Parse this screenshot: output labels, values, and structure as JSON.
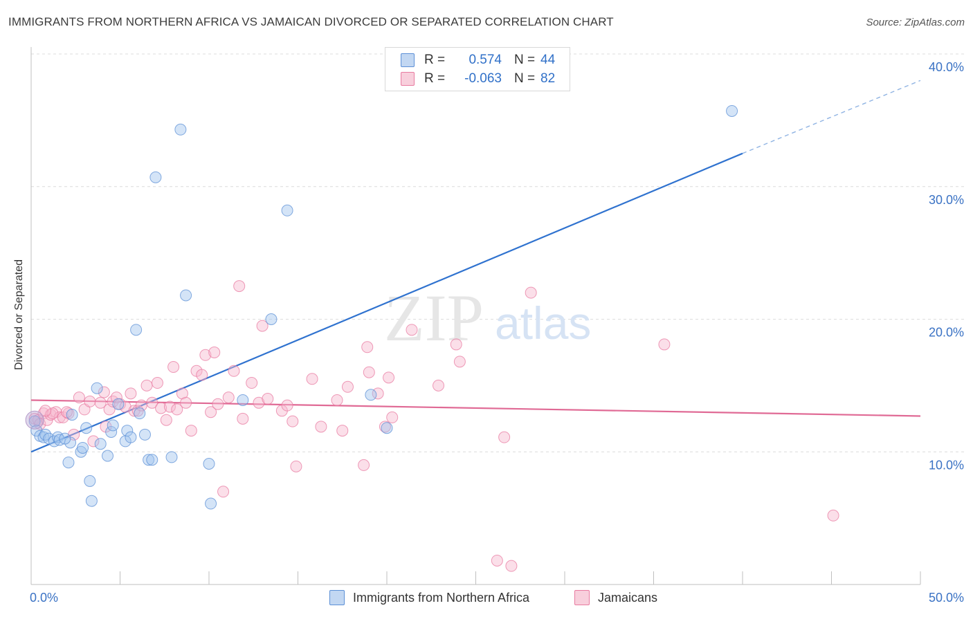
{
  "title": "IMMIGRANTS FROM NORTHERN AFRICA VS JAMAICAN DIVORCED OR SEPARATED CORRELATION CHART",
  "source": "Source: ZipAtlas.com",
  "watermark": {
    "zip": "ZIP",
    "atlas": "atlas"
  },
  "legend": {
    "rows": [
      {
        "r_label": "R =",
        "r_value": "0.574",
        "n_label": "N =",
        "n_value": "44",
        "color": "#5b8fd6"
      },
      {
        "r_label": "R =",
        "r_value": "-0.063",
        "n_label": "N =",
        "n_value": "82",
        "color": "#e87aa0"
      }
    ]
  },
  "bottom_legend": [
    {
      "label": "Immigrants from Northern Africa",
      "color": "#5b8fd6"
    },
    {
      "label": "Jamaicans",
      "color": "#e87aa0"
    }
  ],
  "chart_data": {
    "type": "scatter",
    "title": "IMMIGRANTS FROM NORTHERN AFRICA VS JAMAICAN DIVORCED OR SEPARATED CORRELATION CHART",
    "xlabel": "",
    "ylabel": "Divorced or Separated",
    "xlim": [
      0,
      50
    ],
    "ylim": [
      0,
      40
    ],
    "x_tick_labels": [
      "0.0%",
      "50.0%"
    ],
    "y_tick_labels": [
      "10.0%",
      "20.0%",
      "30.0%",
      "40.0%"
    ],
    "y_ticks": [
      10,
      20,
      30,
      40
    ],
    "grid": true,
    "legend_position": "top-center",
    "series": [
      {
        "name": "Immigrants from Northern Africa",
        "color": "#5b8fd6",
        "trend": {
          "x0": 0,
          "y0": 10.0,
          "x1": 40,
          "y1": 32.5,
          "dash_to_x": 50,
          "dash_to_y": 38.0
        },
        "points": [
          [
            0.2,
            12.3
          ],
          [
            0.3,
            11.6
          ],
          [
            0.5,
            11.2
          ],
          [
            0.7,
            11.1
          ],
          [
            0.8,
            11.3
          ],
          [
            1.0,
            11.0
          ],
          [
            1.3,
            10.8
          ],
          [
            1.5,
            11.1
          ],
          [
            1.6,
            10.9
          ],
          [
            2.2,
            10.7
          ],
          [
            2.1,
            9.2
          ],
          [
            2.8,
            10.0
          ],
          [
            2.9,
            10.3
          ],
          [
            3.1,
            11.8
          ],
          [
            3.3,
            7.8
          ],
          [
            3.4,
            6.3
          ],
          [
            3.7,
            14.8
          ],
          [
            3.9,
            10.6
          ],
          [
            4.3,
            9.7
          ],
          [
            4.5,
            11.5
          ],
          [
            4.6,
            12.0
          ],
          [
            4.9,
            13.6
          ],
          [
            5.3,
            10.8
          ],
          [
            5.4,
            11.6
          ],
          [
            5.6,
            11.1
          ],
          [
            5.9,
            19.2
          ],
          [
            6.1,
            12.9
          ],
          [
            6.4,
            11.3
          ],
          [
            6.6,
            9.4
          ],
          [
            6.8,
            9.4
          ],
          [
            7.0,
            30.7
          ],
          [
            7.9,
            9.6
          ],
          [
            8.4,
            34.3
          ],
          [
            8.7,
            21.8
          ],
          [
            10.0,
            9.1
          ],
          [
            10.1,
            6.1
          ],
          [
            11.9,
            13.9
          ],
          [
            13.5,
            20.0
          ],
          [
            14.4,
            28.2
          ],
          [
            19.1,
            14.3
          ],
          [
            20.0,
            11.8
          ],
          [
            39.4,
            35.7
          ],
          [
            2.3,
            12.8
          ],
          [
            1.9,
            11.0
          ]
        ]
      },
      {
        "name": "Jamaicans",
        "color": "#e87aa0",
        "trend": {
          "x0": 0,
          "y0": 13.9,
          "x1": 50,
          "y1": 12.7
        },
        "points": [
          [
            0.2,
            12.5
          ],
          [
            0.4,
            12.4
          ],
          [
            0.5,
            12.1
          ],
          [
            0.7,
            12.9
          ],
          [
            0.9,
            12.4
          ],
          [
            1.1,
            12.8
          ],
          [
            1.4,
            13.0
          ],
          [
            1.6,
            12.6
          ],
          [
            1.8,
            12.6
          ],
          [
            2.1,
            12.9
          ],
          [
            2.4,
            11.3
          ],
          [
            2.7,
            14.1
          ],
          [
            3.0,
            13.2
          ],
          [
            3.3,
            13.8
          ],
          [
            3.5,
            10.8
          ],
          [
            3.9,
            13.7
          ],
          [
            4.1,
            14.5
          ],
          [
            4.2,
            11.9
          ],
          [
            4.4,
            13.2
          ],
          [
            4.6,
            13.8
          ],
          [
            4.8,
            14.1
          ],
          [
            5.0,
            13.6
          ],
          [
            5.3,
            13.4
          ],
          [
            5.6,
            14.4
          ],
          [
            5.8,
            13.1
          ],
          [
            6.0,
            13.1
          ],
          [
            6.2,
            13.5
          ],
          [
            6.5,
            15.0
          ],
          [
            6.8,
            13.7
          ],
          [
            7.1,
            15.2
          ],
          [
            7.3,
            13.3
          ],
          [
            7.6,
            12.4
          ],
          [
            7.8,
            13.4
          ],
          [
            8.0,
            16.4
          ],
          [
            8.2,
            13.2
          ],
          [
            8.5,
            14.4
          ],
          [
            8.7,
            13.7
          ],
          [
            9.0,
            11.6
          ],
          [
            9.3,
            16.1
          ],
          [
            9.6,
            15.8
          ],
          [
            9.8,
            17.3
          ],
          [
            10.1,
            13.0
          ],
          [
            10.3,
            17.5
          ],
          [
            10.5,
            13.6
          ],
          [
            10.8,
            7.0
          ],
          [
            11.1,
            14.1
          ],
          [
            11.4,
            16.1
          ],
          [
            11.7,
            22.5
          ],
          [
            11.9,
            12.5
          ],
          [
            12.4,
            15.2
          ],
          [
            12.8,
            13.7
          ],
          [
            13.0,
            19.5
          ],
          [
            13.3,
            14.0
          ],
          [
            14.1,
            13.1
          ],
          [
            14.4,
            13.5
          ],
          [
            14.7,
            12.3
          ],
          [
            14.9,
            8.9
          ],
          [
            15.8,
            15.5
          ],
          [
            16.3,
            11.9
          ],
          [
            17.2,
            13.9
          ],
          [
            17.5,
            11.6
          ],
          [
            17.8,
            14.9
          ],
          [
            18.7,
            9.0
          ],
          [
            18.9,
            17.9
          ],
          [
            19.0,
            16.0
          ],
          [
            19.5,
            14.4
          ],
          [
            19.9,
            11.9
          ],
          [
            20.1,
            15.6
          ],
          [
            20.3,
            12.6
          ],
          [
            21.4,
            19.2
          ],
          [
            22.9,
            15.0
          ],
          [
            23.9,
            18.1
          ],
          [
            24.1,
            16.8
          ],
          [
            26.2,
            1.8
          ],
          [
            26.6,
            11.1
          ],
          [
            27.0,
            1.4
          ],
          [
            28.1,
            22.0
          ],
          [
            35.6,
            18.1
          ],
          [
            45.1,
            5.2
          ],
          [
            1.2,
            12.9
          ],
          [
            0.8,
            13.1
          ],
          [
            2.0,
            13.0
          ]
        ]
      }
    ]
  }
}
